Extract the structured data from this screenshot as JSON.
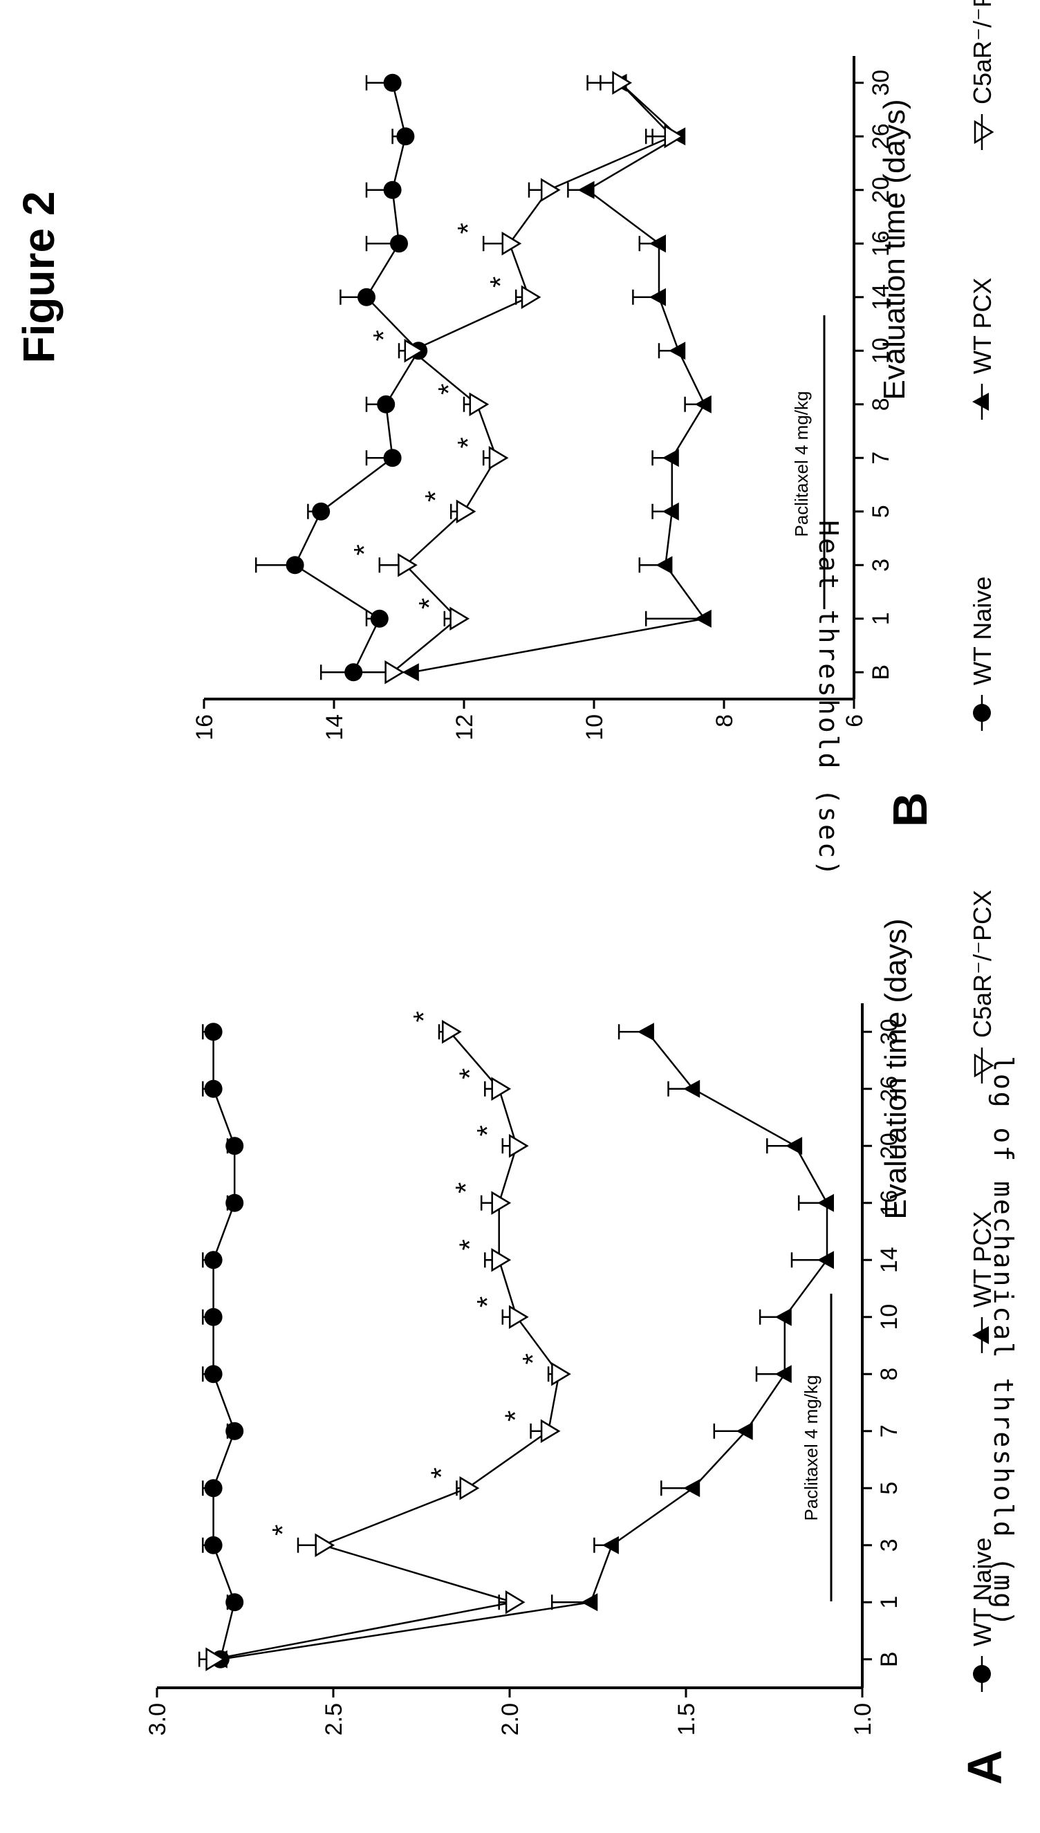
{
  "figure_title": "Figure 2",
  "chart_data": [
    {
      "panel": "A",
      "type": "line",
      "title": "",
      "xlabel": "Evaluation time (days)",
      "ylabel": "log of mechanical threshold (mg)",
      "categories": [
        "B",
        "1",
        "3",
        "5",
        "7",
        "8",
        "10",
        "14",
        "16",
        "20",
        "26",
        "30"
      ],
      "ylim": [
        1.0,
        3.0
      ],
      "yticks": [
        "1.0",
        "1.5",
        "2.0",
        "2.5",
        "3.0"
      ],
      "treatment_annotation": "Paclitaxel 4 mg/kg",
      "legend": [
        "WT Naive",
        "WT PCX",
        "C5aR⁻/⁻PCX"
      ],
      "legend_position": "top",
      "series": [
        {
          "name": "WT Naive",
          "marker": "circle",
          "values": [
            2.82,
            2.78,
            2.84,
            2.84,
            2.78,
            2.84,
            2.84,
            2.84,
            2.78,
            2.78,
            2.84,
            2.84
          ],
          "errors": [
            0.03,
            0.02,
            0.03,
            0.03,
            0.02,
            0.03,
            0.03,
            0.03,
            0.02,
            0.02,
            0.03,
            0.03
          ]
        },
        {
          "name": "WT PCX",
          "marker": "filled-triangle",
          "values": [
            2.82,
            1.77,
            1.71,
            1.48,
            1.33,
            1.22,
            1.22,
            1.1,
            1.1,
            1.19,
            1.48,
            1.61
          ],
          "errors": [
            0.03,
            0.11,
            0.05,
            0.09,
            0.09,
            0.08,
            0.07,
            0.1,
            0.08,
            0.08,
            0.07,
            0.08
          ]
        },
        {
          "name": "C5aR⁻/⁻PCX",
          "marker": "open-triangle",
          "values": [
            2.84,
            1.99,
            2.53,
            2.12,
            1.89,
            1.86,
            1.98,
            2.03,
            2.03,
            1.98,
            2.03,
            2.17
          ],
          "errors": [
            0.04,
            0.04,
            0.07,
            0.03,
            0.05,
            0.03,
            0.04,
            0.04,
            0.05,
            0.04,
            0.04,
            0.03
          ]
        }
      ],
      "significance_marks": [
        "*",
        "*",
        "*",
        "*",
        "*",
        "*",
        "*",
        "*",
        "*",
        "*"
      ],
      "significance_points": [
        "3",
        "5",
        "7",
        "8",
        "10",
        "14",
        "16",
        "20",
        "26",
        "30"
      ]
    },
    {
      "panel": "B",
      "type": "line",
      "title": "",
      "xlabel": "Evaluation time (days)",
      "ylabel": "Heat threshold (sec)",
      "categories": [
        "B",
        "1",
        "3",
        "5",
        "7",
        "8",
        "10",
        "14",
        "16",
        "20",
        "26",
        "30"
      ],
      "ylim": [
        6,
        16
      ],
      "yticks": [
        "6",
        "8",
        "10",
        "12",
        "14",
        "16"
      ],
      "treatment_annotation": "Paclitaxel 4 mg/kg",
      "legend": [
        "WT Naive",
        "WT PCX",
        "C5aR⁻/⁻PCX"
      ],
      "legend_position": "top",
      "series": [
        {
          "name": "WT Naive",
          "marker": "circle",
          "values": [
            13.7,
            13.3,
            14.6,
            14.2,
            13.1,
            13.2,
            12.7,
            13.5,
            13.0,
            13.1,
            12.9,
            13.1
          ],
          "errors": [
            0.5,
            0.2,
            0.6,
            0.2,
            0.4,
            0.3,
            0.2,
            0.4,
            0.5,
            0.4,
            0.2,
            0.4
          ]
        },
        {
          "name": "WT PCX",
          "marker": "filled-triangle",
          "values": [
            12.8,
            8.3,
            8.9,
            8.8,
            8.8,
            8.3,
            8.7,
            9.0,
            9.0,
            10.1,
            8.7,
            9.6
          ],
          "errors": [
            0.4,
            0.9,
            0.4,
            0.3,
            0.3,
            0.3,
            0.3,
            0.4,
            0.3,
            0.3,
            0.4,
            0.5
          ]
        },
        {
          "name": "C5aR⁻/⁻PCX",
          "marker": "open-triangle",
          "values": [
            13.1,
            12.1,
            12.9,
            12.0,
            11.5,
            11.8,
            12.8,
            11.0,
            11.3,
            10.7,
            8.8,
            9.6
          ],
          "errors": [
            0.6,
            0.2,
            0.4,
            0.2,
            0.2,
            0.2,
            0.2,
            0.2,
            0.4,
            0.3,
            0.4,
            0.3
          ]
        }
      ],
      "significance_marks": [
        "*",
        "*",
        "*",
        "*",
        "*",
        "*",
        "*",
        "*"
      ],
      "significance_points": [
        "1",
        "3",
        "5",
        "7",
        "8",
        "10",
        "14",
        "16"
      ]
    }
  ]
}
